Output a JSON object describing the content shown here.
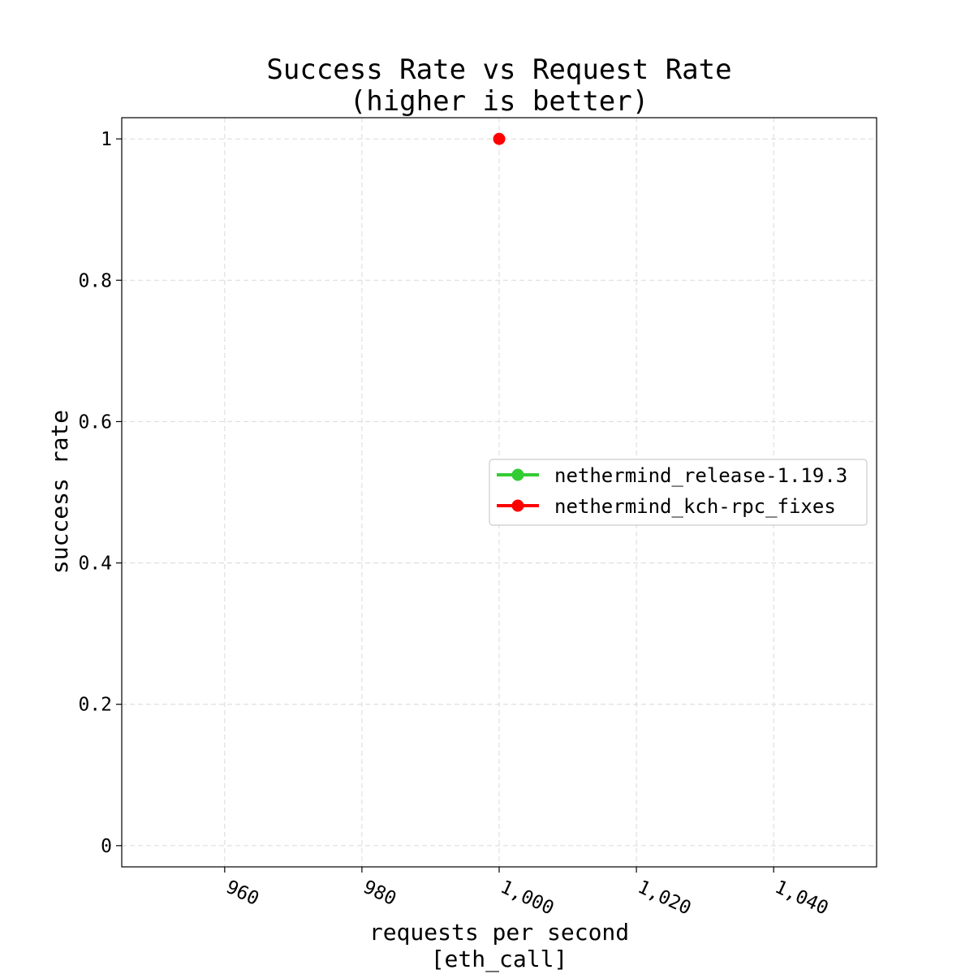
{
  "chart_data": {
    "type": "line",
    "title": [
      "Success Rate vs Request Rate",
      "(higher is better)"
    ],
    "xlabel": [
      "requests per second",
      "[eth_call]"
    ],
    "ylabel": "success rate",
    "xlim": [
      945,
      1055
    ],
    "ylim": [
      -0.03,
      1.03
    ],
    "x_ticks": [
      960,
      980,
      1000,
      1020,
      1040
    ],
    "x_tick_labels": [
      "960",
      "980",
      "1,000",
      "1,020",
      "1,040"
    ],
    "y_ticks": [
      0,
      0.2,
      0.4,
      0.6,
      0.8,
      1
    ],
    "y_tick_labels": [
      "0",
      "0.2",
      "0.4",
      "0.6",
      "0.8",
      "1"
    ],
    "grid": true,
    "legend_position": "center-right",
    "series": [
      {
        "name": "nethermind_release-1.19.3",
        "color": "#33cc33",
        "points": []
      },
      {
        "name": "nethermind_kch-rpc_fixes",
        "color": "#ff0000",
        "points": [
          {
            "x": 1000,
            "y": 1.0
          }
        ]
      }
    ]
  }
}
